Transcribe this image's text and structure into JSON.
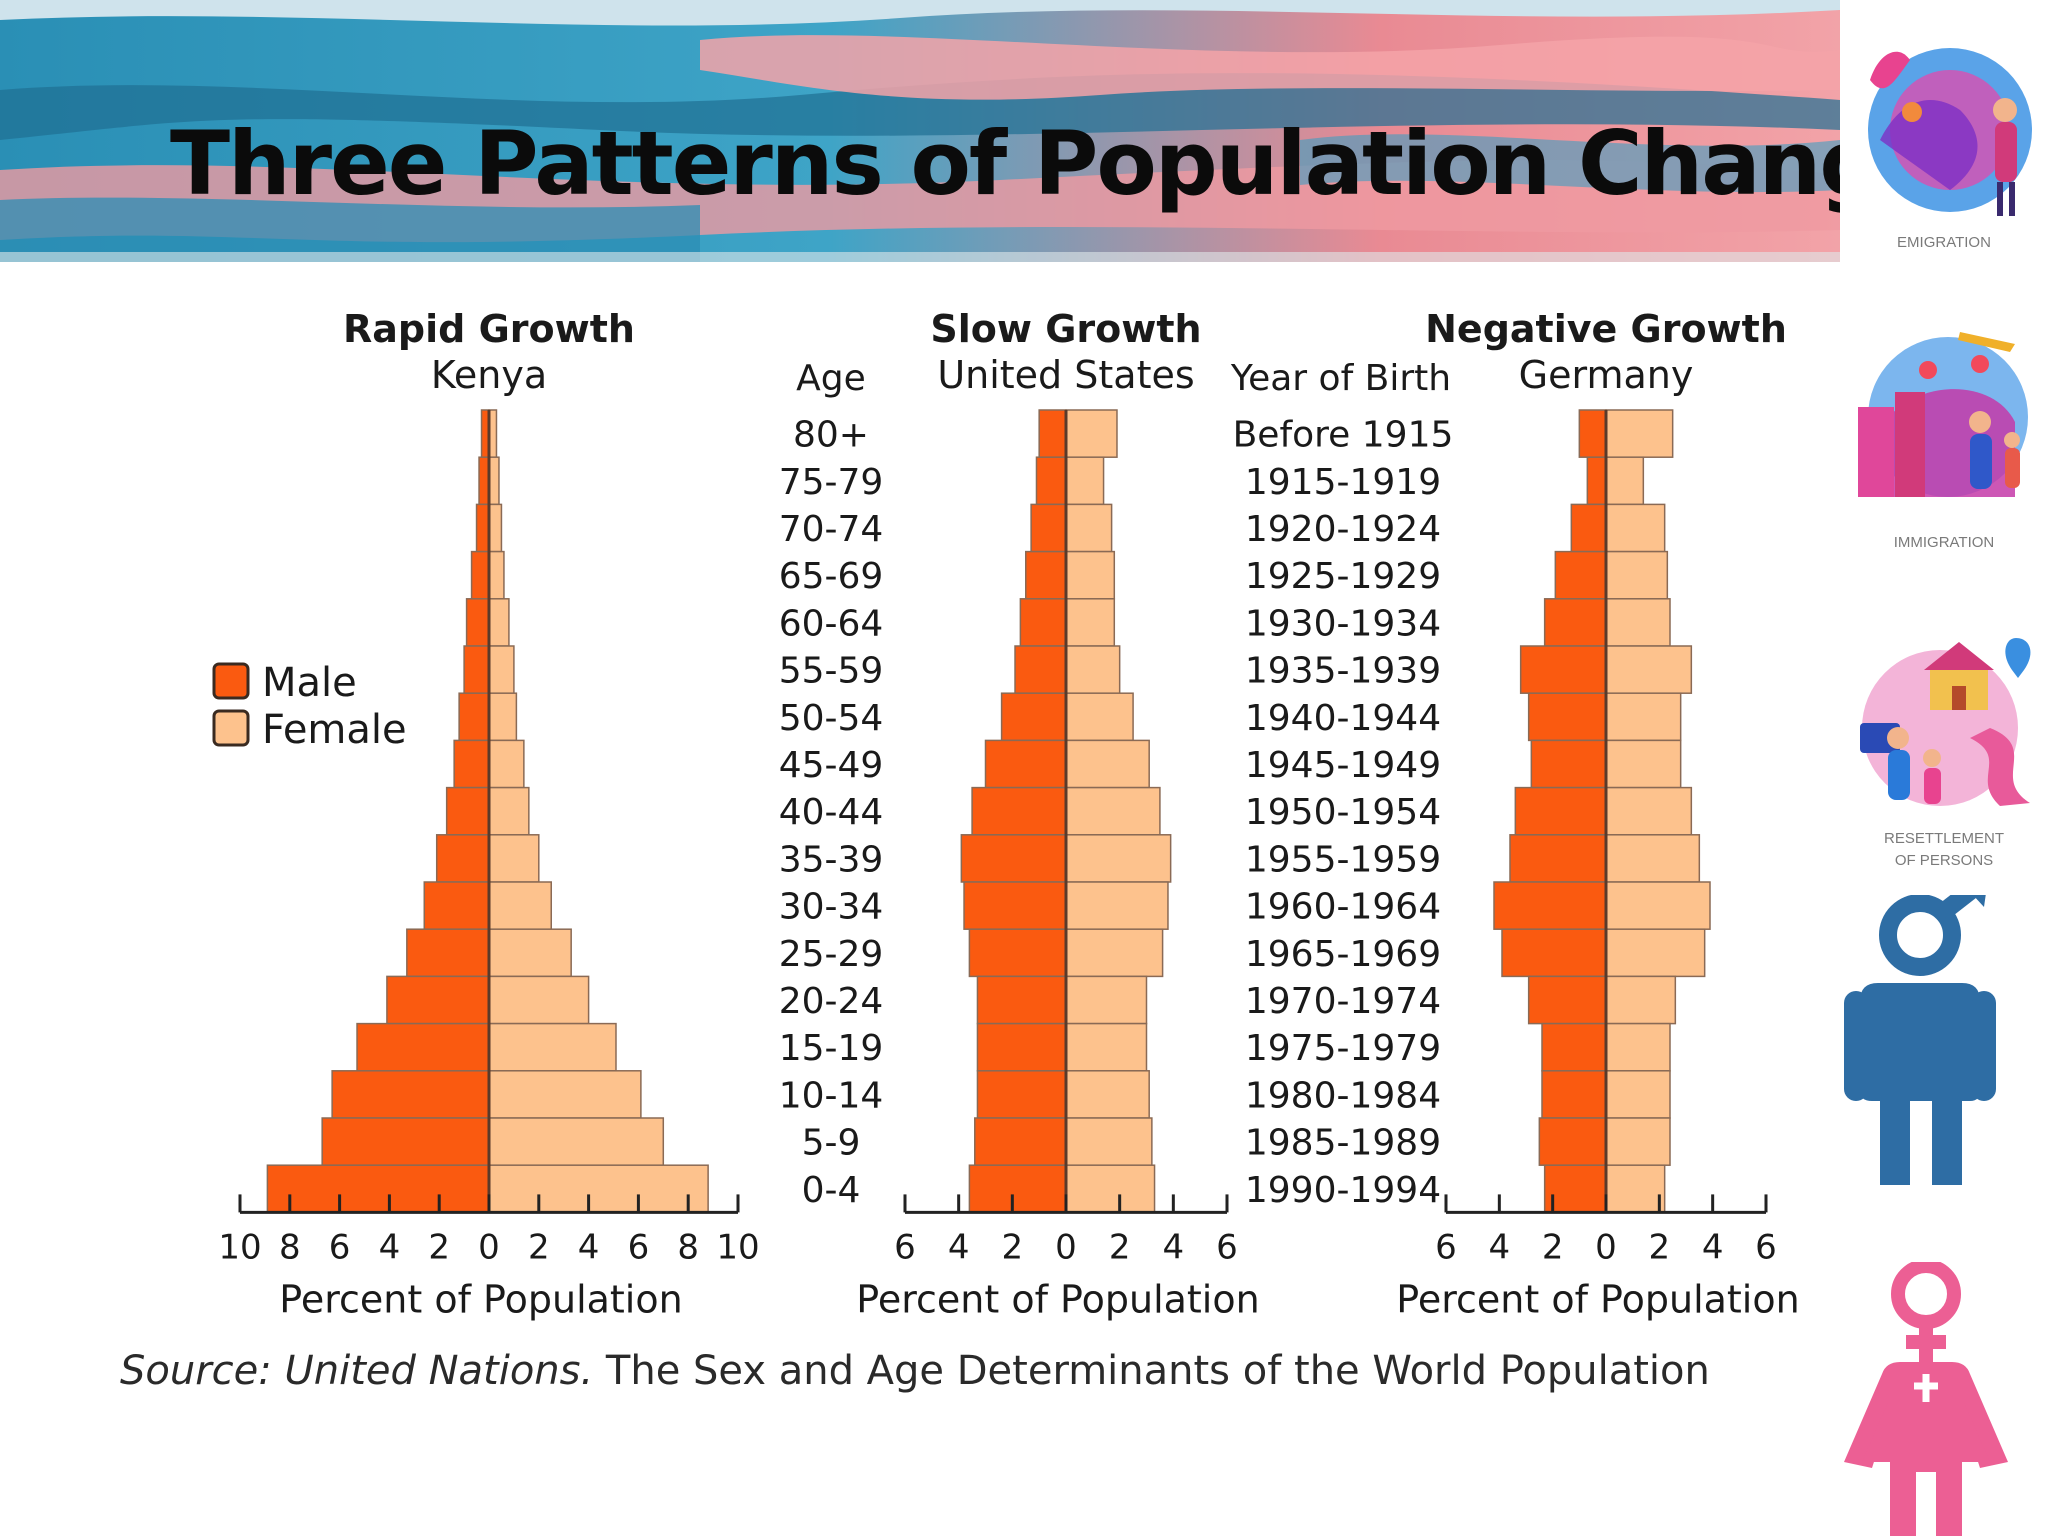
{
  "slide": {
    "title": "Three Patterns of Population Change",
    "source_italic": "Source: United Nations.",
    "source_rest": " The Sex and Age Determinants of the World Population"
  },
  "sidebar": {
    "emigration": "EMIGRATION",
    "immigration": "IMMIGRATION",
    "resettlement_line1": "RESETTLEMENT",
    "resettlement_line2": "OF PERSONS"
  },
  "colors": {
    "male": "#fa5a10",
    "female": "#fdc28d",
    "bar_edge": "#8a6a55",
    "male_symbol": "#2e6da4",
    "female_symbol": "#ec5f94"
  },
  "legend": {
    "male": "Male",
    "female": "Female"
  },
  "labels": {
    "age_header": "Age",
    "year_header": "Year of Birth"
  },
  "chart_data": {
    "type": "population-pyramid",
    "age_groups": [
      "80+",
      "75-79",
      "70-74",
      "65-69",
      "60-64",
      "55-59",
      "50-54",
      "45-49",
      "40-44",
      "35-39",
      "30-34",
      "25-29",
      "20-24",
      "15-19",
      "10-14",
      "5-9",
      "0-4"
    ],
    "birth_years": [
      "Before 1915",
      "1915-1919",
      "1920-1924",
      "1925-1929",
      "1930-1934",
      "1935-1939",
      "1940-1944",
      "1945-1949",
      "1950-1954",
      "1955-1959",
      "1960-1964",
      "1965-1969",
      "1970-1974",
      "1975-1979",
      "1980-1984",
      "1985-1989",
      "1990-1994"
    ],
    "xlabel": "Percent of Population",
    "pyramids": [
      {
        "title": "Rapid Growth",
        "subtitle": "Kenya",
        "xlim": [
          -10,
          10
        ],
        "ticks": [
          "10",
          "8",
          "6",
          "4",
          "2",
          "0",
          "2",
          "4",
          "6",
          "8",
          "10"
        ],
        "male": [
          0.3,
          0.4,
          0.5,
          0.7,
          0.9,
          1.0,
          1.2,
          1.4,
          1.7,
          2.1,
          2.6,
          3.3,
          4.1,
          5.3,
          6.3,
          6.7,
          8.9
        ],
        "female": [
          0.3,
          0.4,
          0.5,
          0.6,
          0.8,
          1.0,
          1.1,
          1.4,
          1.6,
          2.0,
          2.5,
          3.3,
          4.0,
          5.1,
          6.1,
          7.0,
          8.8
        ]
      },
      {
        "title": "Slow Growth",
        "subtitle": "United States",
        "xlim": [
          -6,
          6
        ],
        "ticks": [
          "6",
          "4",
          "2",
          "0",
          "2",
          "4",
          "6"
        ],
        "male": [
          1.0,
          1.1,
          1.3,
          1.5,
          1.7,
          1.9,
          2.4,
          3.0,
          3.5,
          3.9,
          3.8,
          3.6,
          3.3,
          3.3,
          3.3,
          3.4,
          3.6
        ],
        "female": [
          1.9,
          1.4,
          1.7,
          1.8,
          1.8,
          2.0,
          2.5,
          3.1,
          3.5,
          3.9,
          3.8,
          3.6,
          3.0,
          3.0,
          3.1,
          3.2,
          3.3
        ]
      },
      {
        "title": "Negative Growth",
        "subtitle": "Germany",
        "xlim": [
          -6,
          6
        ],
        "ticks": [
          "6",
          "4",
          "2",
          "0",
          "2",
          "4",
          "6"
        ],
        "male": [
          1.0,
          0.7,
          1.3,
          1.9,
          2.3,
          3.2,
          2.9,
          2.8,
          3.4,
          3.6,
          4.2,
          3.9,
          2.9,
          2.4,
          2.4,
          2.5,
          2.3
        ],
        "female": [
          2.5,
          1.4,
          2.2,
          2.3,
          2.4,
          3.2,
          2.8,
          2.8,
          3.2,
          3.5,
          3.9,
          3.7,
          2.6,
          2.4,
          2.4,
          2.4,
          2.2
        ]
      }
    ]
  }
}
